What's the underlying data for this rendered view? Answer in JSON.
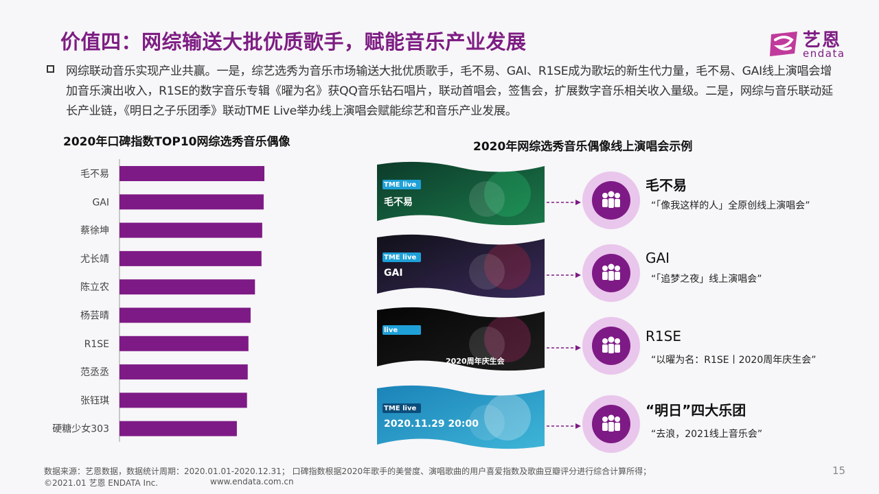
{
  "header": {
    "title": "价值四：网综输送大批优质歌手，赋能音乐产业发展",
    "logo_cn": "艺恩",
    "logo_en": "endata"
  },
  "intro": "网综联动音乐实现产业共赢。一是，综艺选秀为音乐市场输送大批优质歌手，毛不易、GAI、R1SE成为歌坛的新生代力量，毛不易、GAI线上演唱会增加音乐演出收入，R1SE的数字音乐专辑《曜为名》获QQ音乐钻石唱片，联动首唱会，签售会，扩展数字音乐相关收入量级。二是，网综与音乐联动延长产业链，《明日之子乐团季》联动TME Live举办线上演唱会赋能综艺和音乐产业发展。",
  "chart_data": {
    "type": "bar",
    "orientation": "horizontal",
    "title": "2020年口碑指数TOP10网综选秀音乐偶像",
    "categories": [
      "毛不易",
      "GAI",
      "蔡徐坤",
      "尤长靖",
      "陈立农",
      "杨芸晴",
      "R1SE",
      "范丞丞",
      "张钰琪",
      "硬糖少女303"
    ],
    "values": [
      100,
      99.5,
      98.5,
      98,
      93.5,
      90.5,
      89,
      88.5,
      88,
      81
    ],
    "xlim": [
      0,
      100
    ],
    "grid": false,
    "color": "#7e1a86"
  },
  "concerts": {
    "title": "2020年网综选秀音乐偶像线上演唱会示例",
    "items": [
      {
        "name": "毛不易",
        "desc": "“「像我这样的人」全原创线上演唱会”",
        "thumb_text": "毛不易",
        "thumb_badge": "TME live"
      },
      {
        "name": "GAI",
        "desc": "“「追梦之夜」线上演唱会”",
        "thumb_text": "GAI",
        "thumb_badge": "TME live"
      },
      {
        "name": "R1SE",
        "desc": "“以曜为名：R1SE丨2020周年庆生会”",
        "thumb_text": "2020周年庆生会",
        "thumb_badge": "live"
      },
      {
        "name": "“明日”四大乐团",
        "desc": "“去浪，2021线上音乐会”",
        "thumb_text": "2020.11.29 20:00",
        "thumb_badge": "TME live"
      }
    ]
  },
  "footer": {
    "source": "数据来源：艺恩数据，数据统计周期：2020.01.01-2020.12.31； 口碑指数根据2020年歌手的美誉度、演唱歌曲的用户喜爱指数及歌曲豆瓣评分进行综合计算所得；",
    "copyright": "©2021.01 艺恩 ENDATA Inc.",
    "url": "www.endata.com.cn",
    "page": "15"
  },
  "colors": {
    "brand": "#7d1d83",
    "bar": "#7e1a86",
    "circle_outer": "#e9c6ec",
    "circle_inner": "#7e1a86"
  }
}
